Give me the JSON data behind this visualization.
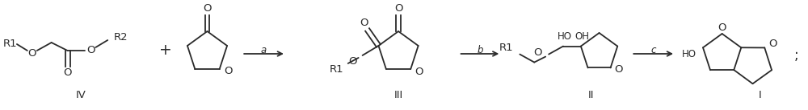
{
  "bg_color": "#ffffff",
  "line_color": "#2a2a2a",
  "text_color": "#2a2a2a",
  "figsize": [
    10.0,
    1.37
  ],
  "dpi": 100,
  "xlim": [
    0,
    1000
  ],
  "ylim": [
    0,
    137
  ],
  "font_size": 9.5,
  "small_font_size": 8.5,
  "lw": 1.3
}
